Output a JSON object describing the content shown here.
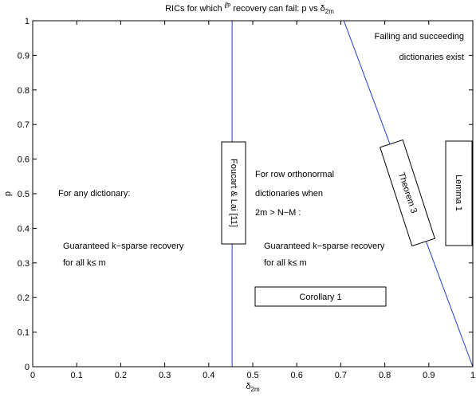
{
  "chart_data": {
    "type": "line",
    "title": "RICs for which ",
    "title_symbol": "ℓ",
    "title_tail_text": "p",
    "title_rest": " recovery can fail: p vs ",
    "title_delta": "δ",
    "title_sub": "2m",
    "xlabel": "δ",
    "xlabel_sub": "2m",
    "ylabel": "p",
    "xlim": [
      0,
      1
    ],
    "ylim": [
      0,
      1
    ],
    "xticks": [
      "0",
      "0.1",
      "0.2",
      "0.3",
      "0.4",
      "0.5",
      "0.6",
      "0.7",
      "0.8",
      "0.9",
      "1"
    ],
    "yticks": [
      "0",
      "0.1",
      "0.2",
      "0.3",
      "0.4",
      "0.5",
      "0.6",
      "0.7",
      "0.8",
      "0.9",
      "1"
    ],
    "grid": false,
    "line_color": "#1f3fd0",
    "series": [
      {
        "x": [
          0.4531,
          0.4531
        ],
        "y": [
          0,
          1
        ]
      },
      {
        "x": [
          0.7071,
          1.0
        ],
        "y": [
          1,
          0
        ]
      },
      {
        "x": [
          1.0,
          1.0
        ],
        "y": [
          0,
          1
        ]
      }
    ],
    "annotations": {
      "failing_line1": "Failing and succeeding",
      "failing_line2": "dictionaries exist",
      "any_dict": "For any dictionary:",
      "guaranteed_left_1": "Guaranteed k−sparse recovery",
      "guaranteed_left_2": "for all k≤ m",
      "row_ortho_1": "For row orthonormal",
      "row_ortho_2": "dictionaries when",
      "row_ortho_3": "2m > N−M :",
      "guaranteed_mid_1": "Guaranteed k−sparse recovery",
      "guaranteed_mid_2": "for all k≤ m"
    },
    "boxes": {
      "foucart": "Foucart & Lai [11]",
      "theorem": "Theorem 3",
      "lemma": "Lemma 1",
      "corollary": "Corollary 1"
    }
  }
}
